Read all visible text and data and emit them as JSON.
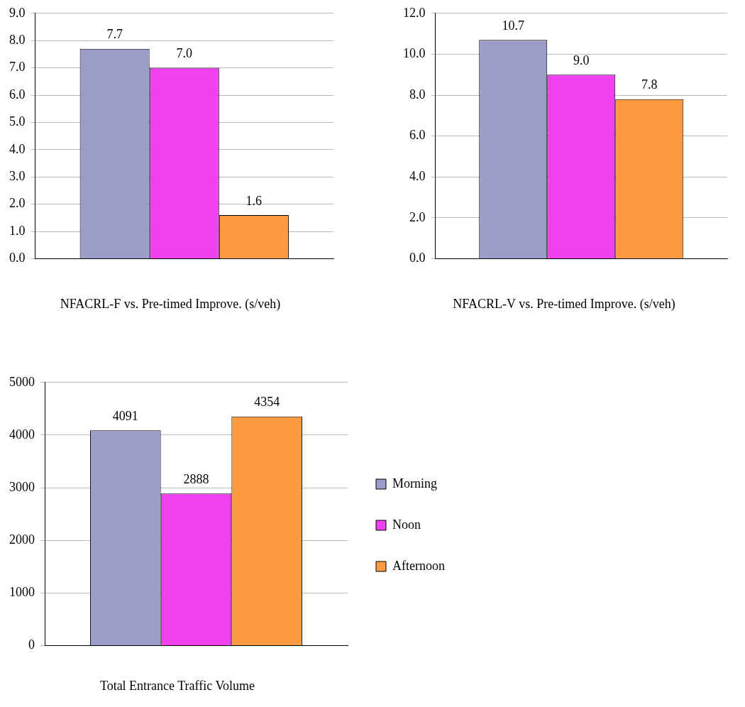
{
  "chart_data": [
    {
      "type": "bar",
      "xlabel": "NFACRL-F vs. Pre-timed Improve. (s/veh)",
      "categories": [
        null
      ],
      "series": [
        {
          "color": "#9c9cc8",
          "values": [
            7.7
          ],
          "value_labels": [
            "7.7"
          ]
        },
        {
          "color": "#f040f0",
          "values": [
            7.0
          ],
          "value_labels": [
            "7.0"
          ]
        },
        {
          "color": "#ff9a40",
          "values": [
            1.6
          ],
          "value_labels": [
            "1.6"
          ]
        }
      ],
      "ylim": [
        0,
        9
      ],
      "yticks": [
        {
          "value": 0,
          "label": "0.0"
        },
        {
          "value": 1,
          "label": "1.0"
        },
        {
          "value": 2,
          "label": "2.0"
        },
        {
          "value": 3,
          "label": "3.0"
        },
        {
          "value": 4,
          "label": "4.0"
        },
        {
          "value": 5,
          "label": "5.0"
        },
        {
          "value": 6,
          "label": "6.0"
        },
        {
          "value": 7,
          "label": "7.0"
        },
        {
          "value": 8,
          "label": "8.0"
        },
        {
          "value": 9,
          "label": "9.0"
        }
      ],
      "grid": "y",
      "legend": false
    },
    {
      "type": "bar",
      "xlabel": "NFACRL-V vs. Pre-timed Improve. (s/veh)",
      "categories": [
        null
      ],
      "series": [
        {
          "color": "#9c9cc8",
          "values": [
            10.7
          ],
          "value_labels": [
            "10.7"
          ]
        },
        {
          "color": "#f040f0",
          "values": [
            9.0
          ],
          "value_labels": [
            "9.0"
          ]
        },
        {
          "color": "#ff9a40",
          "values": [
            7.8
          ],
          "value_labels": [
            "7.8"
          ]
        }
      ],
      "ylim": [
        0,
        12
      ],
      "yticks": [
        {
          "value": 0,
          "label": "0.0"
        },
        {
          "value": 2,
          "label": "2.0"
        },
        {
          "value": 4,
          "label": "4.0"
        },
        {
          "value": 6,
          "label": "6.0"
        },
        {
          "value": 8,
          "label": "8.0"
        },
        {
          "value": 10,
          "label": "10.0"
        },
        {
          "value": 12,
          "label": "12.0"
        }
      ],
      "grid": "y",
      "legend": false
    },
    {
      "type": "bar",
      "xlabel": "Total Entrance Traffic Volume",
      "categories": [
        null
      ],
      "series": [
        {
          "name": "Morning",
          "color": "#9c9cc8",
          "values": [
            4091
          ],
          "value_labels": [
            "4091"
          ]
        },
        {
          "name": "Noon",
          "color": "#f040f0",
          "values": [
            2888
          ],
          "value_labels": [
            "2888"
          ]
        },
        {
          "name": "Afternoon",
          "color": "#ff9a40",
          "values": [
            4354
          ],
          "value_labels": [
            "4354"
          ]
        }
      ],
      "ylim": [
        0,
        5000
      ],
      "yticks": [
        0,
        1000,
        2000,
        3000,
        4000,
        5000
      ],
      "grid": "y",
      "legend": "right"
    }
  ]
}
